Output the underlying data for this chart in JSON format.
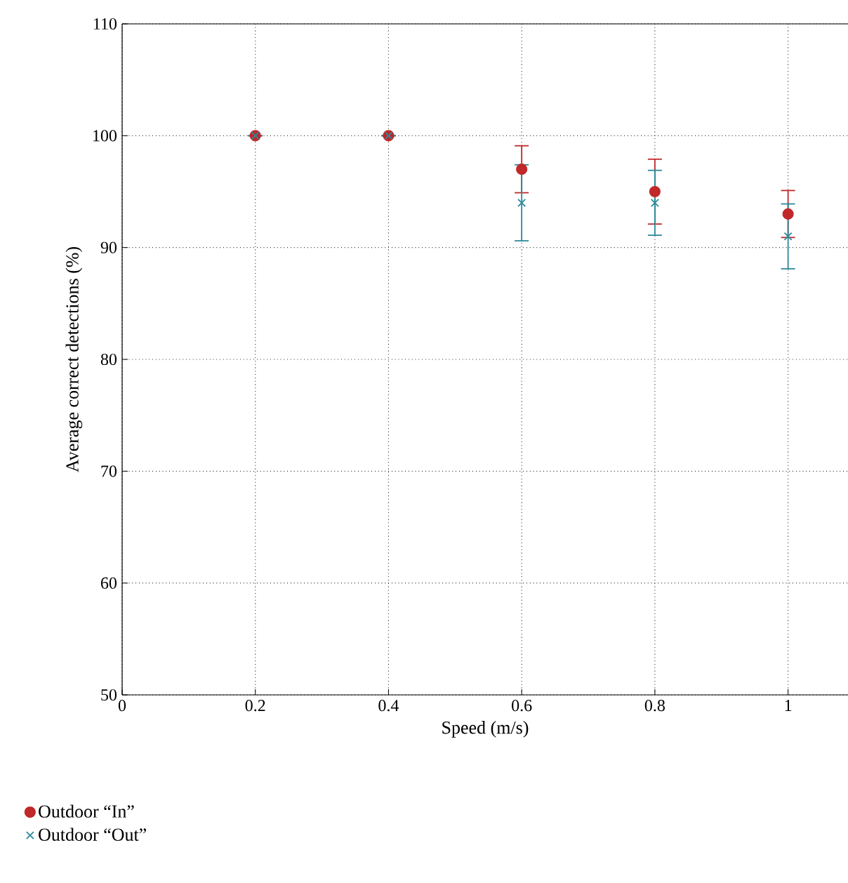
{
  "chart_data": {
    "type": "scatter",
    "xlabel": "Speed (m/s)",
    "ylabel": "Average correct detections (%)",
    "x": [
      0.2,
      0.4,
      0.6,
      0.8,
      1
    ],
    "series": [
      {
        "name": "Outdoor “In”",
        "color": "#c0282a",
        "marker": "circle",
        "values": [
          100,
          100,
          97,
          95,
          93
        ],
        "errors": [
          0,
          0,
          2.1,
          2.9,
          2.1
        ]
      },
      {
        "name": "Outdoor “Out”",
        "color": "#2a8a9a",
        "marker": "cross",
        "values": [
          100,
          100,
          94,
          94,
          91
        ],
        "errors": [
          0,
          0,
          3.4,
          2.9,
          2.9
        ]
      }
    ],
    "xlim": [
      0,
      1.09
    ],
    "xticks": [
      0,
      0.2,
      0.4,
      0.6,
      0.8,
      1
    ],
    "ylim": [
      50,
      110
    ],
    "yticks": [
      50,
      60,
      70,
      80,
      90,
      100,
      110
    ],
    "grid": true,
    "legend": "bottom"
  }
}
